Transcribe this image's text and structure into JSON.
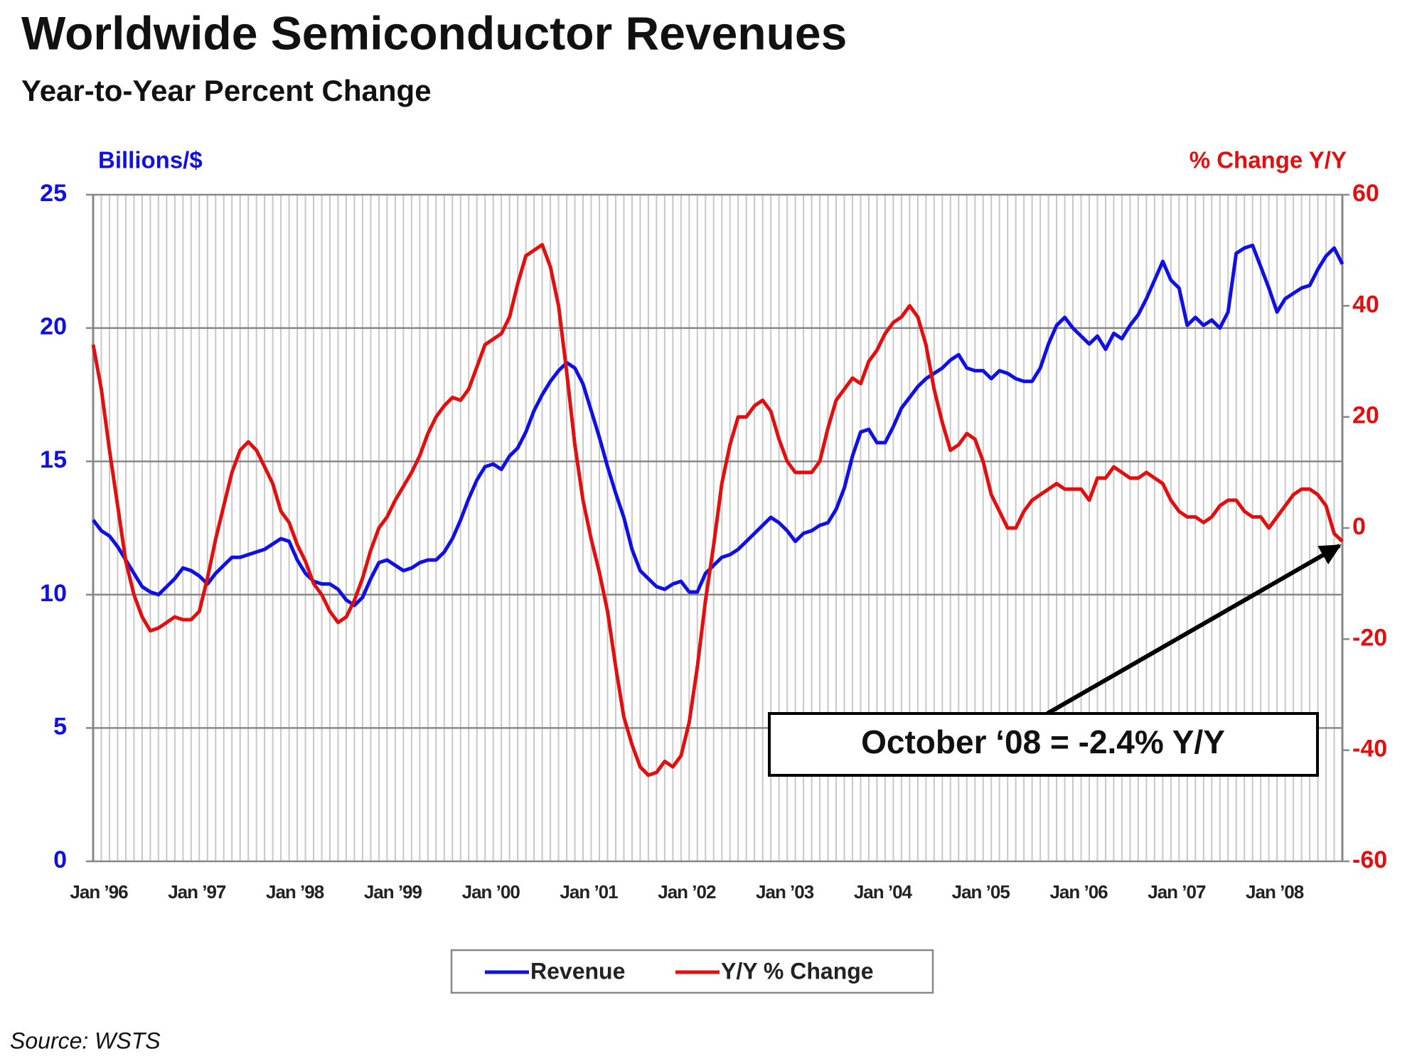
{
  "chart_data": {
    "type": "line",
    "title": "Worldwide Semiconductor Revenues",
    "subtitle": "Year-to-Year Percent Change",
    "y_label": "Billions/$",
    "y2_label": "% Change Y/Y",
    "source": "Source: WSTS",
    "annotation": "October ‘08 = -2.4% Y/Y",
    "categories": [
      "Jan ’96",
      null,
      null,
      null,
      null,
      null,
      null,
      null,
      null,
      null,
      null,
      null,
      "Jan ’97",
      null,
      null,
      null,
      null,
      null,
      null,
      null,
      null,
      null,
      null,
      null,
      "Jan ’98",
      null,
      null,
      null,
      null,
      null,
      null,
      null,
      null,
      null,
      null,
      null,
      "Jan ’99",
      null,
      null,
      null,
      null,
      null,
      null,
      null,
      null,
      null,
      null,
      null,
      "Jan ’00",
      null,
      null,
      null,
      null,
      null,
      null,
      null,
      null,
      null,
      null,
      null,
      "Jan ’01",
      null,
      null,
      null,
      null,
      null,
      null,
      null,
      null,
      null,
      null,
      null,
      "Jan ’02",
      null,
      null,
      null,
      null,
      null,
      null,
      null,
      null,
      null,
      null,
      null,
      "Jan ’03",
      null,
      null,
      null,
      null,
      null,
      null,
      null,
      null,
      null,
      null,
      null,
      "Jan ’04",
      null,
      null,
      null,
      null,
      null,
      null,
      null,
      null,
      null,
      null,
      null,
      "Jan ’05",
      null,
      null,
      null,
      null,
      null,
      null,
      null,
      null,
      null,
      null,
      null,
      "Jan ’06",
      null,
      null,
      null,
      null,
      null,
      null,
      null,
      null,
      null,
      null,
      null,
      "Jan ’07",
      null,
      null,
      null,
      null,
      null,
      null,
      null,
      null,
      null,
      null,
      null,
      "Jan ’08",
      null,
      null,
      null,
      null,
      null,
      null,
      null,
      null,
      null
    ],
    "series": [
      {
        "name": "Revenue",
        "color": "#1010e0",
        "axis": "y",
        "values": [
          12.8,
          12.4,
          12.2,
          11.8,
          11.3,
          10.8,
          10.3,
          10.1,
          10.0,
          10.3,
          10.6,
          11.0,
          10.9,
          10.7,
          10.4,
          10.8,
          11.1,
          11.4,
          11.4,
          11.5,
          11.6,
          11.7,
          11.9,
          12.1,
          12.0,
          11.3,
          10.8,
          10.5,
          10.4,
          10.4,
          10.2,
          9.8,
          9.6,
          9.9,
          10.6,
          11.2,
          11.3,
          11.1,
          10.9,
          11.0,
          11.2,
          11.3,
          11.3,
          11.6,
          12.1,
          12.8,
          13.6,
          14.3,
          14.8,
          14.9,
          14.7,
          15.2,
          15.5,
          16.1,
          16.9,
          17.5,
          18.0,
          18.4,
          18.7,
          18.5,
          17.9,
          16.9,
          15.9,
          14.8,
          13.8,
          12.9,
          11.7,
          10.9,
          10.6,
          10.3,
          10.2,
          10.4,
          10.5,
          10.1,
          10.1,
          10.8,
          11.1,
          11.4,
          11.5,
          11.7,
          12.0,
          12.3,
          12.6,
          12.9,
          12.7,
          12.4,
          12.0,
          12.3,
          12.4,
          12.6,
          12.7,
          13.2,
          14.0,
          15.2,
          16.1,
          16.2,
          15.7,
          15.7,
          16.3,
          17.0,
          17.4,
          17.8,
          18.1,
          18.3,
          18.5,
          18.8,
          19.0,
          18.5,
          18.4,
          18.4,
          18.1,
          18.4,
          18.3,
          18.1,
          18.0,
          18.0,
          18.5,
          19.4,
          20.1,
          20.4,
          20.0,
          19.7,
          19.4,
          19.7,
          19.2,
          19.8,
          19.6,
          20.1,
          20.5,
          21.1,
          21.8,
          22.5,
          21.8,
          21.5,
          20.1,
          20.4,
          20.1,
          20.3,
          20.0,
          20.6,
          22.8,
          23.0,
          23.1,
          22.3,
          21.5,
          20.6,
          21.1,
          21.3,
          21.5,
          21.6,
          22.2,
          22.7,
          23.0,
          22.4
        ]
      },
      {
        "name": "Y/Y % Change",
        "color": "#e01010",
        "axis": "y2",
        "values": [
          33,
          25,
          14,
          4,
          -6,
          -12,
          -16,
          -18.5,
          -18,
          -17,
          -16,
          -16.5,
          -16.5,
          -15,
          -9,
          -2,
          4,
          10,
          14,
          15.5,
          14,
          11,
          8,
          3,
          1,
          -3,
          -6,
          -10,
          -12,
          -15,
          -17,
          -16,
          -13,
          -9,
          -4,
          0,
          2,
          5,
          7.5,
          10,
          13,
          17,
          20,
          22,
          23.5,
          23,
          25,
          29,
          33,
          34,
          35,
          38,
          44,
          49,
          50,
          51,
          47,
          40,
          28,
          15,
          5,
          -2,
          -8,
          -15,
          -25,
          -34,
          -39,
          -43,
          -44.5,
          -44,
          -42,
          -43,
          -41,
          -35,
          -25,
          -13,
          -3,
          8,
          15,
          20,
          20,
          22,
          23,
          21,
          16,
          12,
          10,
          10,
          10,
          12,
          18,
          23,
          25,
          27,
          26,
          30,
          32,
          35,
          37,
          38,
          40,
          38,
          33,
          25,
          19,
          14,
          15,
          17,
          16,
          12,
          6,
          3,
          0,
          0,
          3,
          5,
          6,
          7,
          8,
          7,
          7,
          7,
          5,
          9,
          9,
          11,
          10,
          9,
          9,
          10,
          9,
          8,
          5,
          3,
          2,
          2,
          1,
          2,
          4,
          5,
          5,
          3,
          2,
          2,
          0,
          2,
          4,
          6,
          7,
          7,
          6,
          4,
          -1,
          -2.4
        ]
      }
    ],
    "ylim": [
      0,
      25
    ],
    "yticks": [
      0,
      5,
      10,
      15,
      20,
      25
    ],
    "y2lim": [
      -60,
      60
    ],
    "y2ticks": [
      -60,
      -40,
      -20,
      0,
      20,
      40,
      60
    ],
    "grid": true
  }
}
